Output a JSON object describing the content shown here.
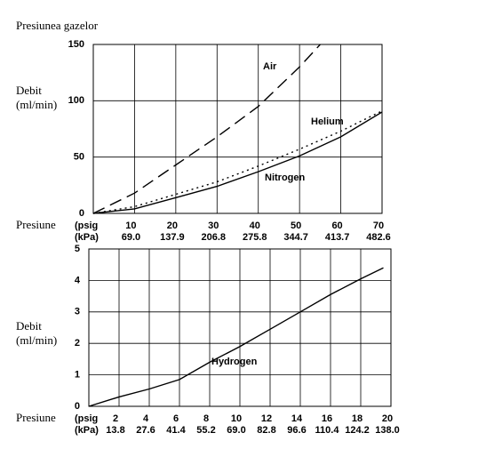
{
  "chart_data": [
    {
      "type": "line",
      "title": "Presiunea gazelor",
      "ylabel": [
        "Debit",
        "(ml/min)"
      ],
      "xlabel": "Presiune",
      "x_unit_label": "(psig",
      "x2_unit_label": "(kPa)",
      "xlim": [
        0,
        70
      ],
      "xticks": [
        10,
        20,
        30,
        40,
        50,
        60,
        70
      ],
      "x2lim": [
        0,
        482.6
      ],
      "x2ticks": [
        {
          "value": 69.0,
          "label": "69.0"
        },
        {
          "value": 137.9,
          "label": "137.9"
        },
        {
          "value": 206.8,
          "label": "206.8"
        },
        {
          "value": 275.8,
          "label": "275.8"
        },
        {
          "value": 344.7,
          "label": "344.7"
        },
        {
          "value": 413.7,
          "label": "413.7"
        },
        {
          "value": 482.6,
          "label": "482.6"
        }
      ],
      "ylim": [
        0,
        150
      ],
      "yticks": [
        0,
        50,
        100,
        150
      ],
      "grid": true,
      "series": [
        {
          "name": "Air",
          "color": "#000000",
          "dash": "dashed",
          "x": [
            0,
            10,
            20,
            30,
            40,
            50,
            55
          ],
          "values": [
            0,
            18,
            43,
            68,
            95,
            130,
            150
          ]
        },
        {
          "name": "Helium",
          "color": "#000000",
          "dash": "dotted",
          "x": [
            0,
            10,
            20,
            30,
            40,
            50,
            60,
            70
          ],
          "values": [
            0,
            6,
            17,
            28,
            42,
            57,
            73,
            91
          ]
        },
        {
          "name": "Nitrogen",
          "color": "#000000",
          "dash": "solid",
          "x": [
            0,
            10,
            20,
            30,
            40,
            50,
            60,
            70
          ],
          "values": [
            0,
            4,
            14,
            24,
            37,
            51,
            68,
            90
          ]
        }
      ]
    },
    {
      "type": "line",
      "ylabel": [
        "Debit",
        "(ml/min)"
      ],
      "xlabel": "Presiune",
      "x_unit_label": "(psig",
      "x2_unit_label": "(kPa)",
      "xlim": [
        0,
        20
      ],
      "xticks": [
        2,
        4,
        6,
        8,
        10,
        12,
        14,
        16,
        18,
        20
      ],
      "x2lim": [
        0,
        138.0
      ],
      "x2ticks": [
        {
          "value": 13.8,
          "label": "13.8"
        },
        {
          "value": 27.6,
          "label": "27.6"
        },
        {
          "value": 41.4,
          "label": "41.4"
        },
        {
          "value": 55.2,
          "label": "55.2"
        },
        {
          "value": 69.0,
          "label": "69.0"
        },
        {
          "value": 82.8,
          "label": "82.8"
        },
        {
          "value": 96.6,
          "label": "96.6"
        },
        {
          "value": 110.4,
          "label": "110.4"
        },
        {
          "value": 124.2,
          "label": "124.2"
        },
        {
          "value": 138.0,
          "label": "138.0"
        }
      ],
      "ylim": [
        0,
        5
      ],
      "yticks": [
        0,
        1,
        2,
        3,
        4,
        5
      ],
      "grid": true,
      "series": [
        {
          "name": "Hydrogen",
          "color": "#000000",
          "dash": "solid",
          "x": [
            0,
            2,
            4,
            6,
            8,
            10,
            12,
            14,
            16,
            18,
            19.5
          ],
          "values": [
            0,
            0.3,
            0.55,
            0.85,
            1.4,
            1.9,
            2.45,
            3.0,
            3.55,
            4.05,
            4.4
          ]
        }
      ]
    }
  ]
}
